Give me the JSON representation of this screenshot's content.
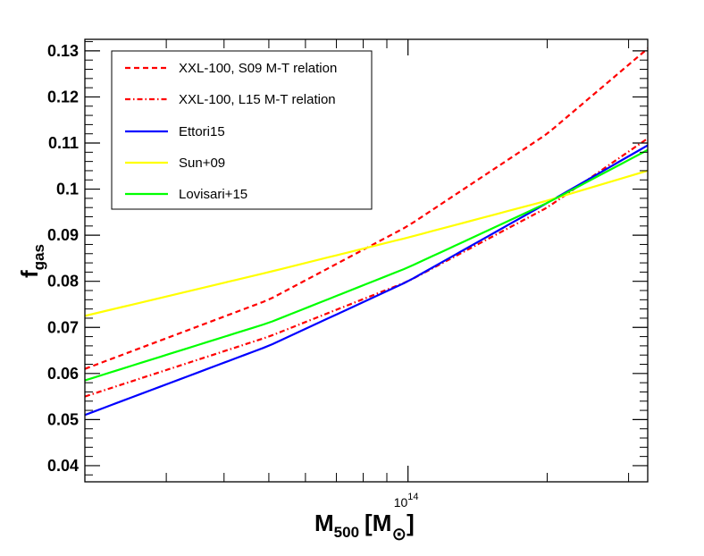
{
  "chart_data": {
    "type": "line",
    "title": "",
    "xlabel": {
      "main": "M",
      "sub": "500",
      "unit_open": "[M",
      "unit_sub": "⊙",
      "unit_close": "]"
    },
    "ylabel": {
      "main": "f",
      "sub": "gas"
    },
    "x_scale": "log",
    "xlim": [
      20000000000000,
      330000000000000
    ],
    "ylim": [
      0.0365,
      0.1325
    ],
    "x_tick_labels": [
      {
        "value": 100000000000000,
        "base": "10",
        "exp": "14"
      }
    ],
    "x_minor_ticks": [
      20000000000000,
      30000000000000,
      40000000000000,
      50000000000000,
      60000000000000,
      70000000000000,
      80000000000000,
      90000000000000,
      200000000000000,
      300000000000000
    ],
    "y_ticks": [
      0.04,
      0.05,
      0.06,
      0.07,
      0.08,
      0.09,
      0.1,
      0.11,
      0.12,
      0.13
    ],
    "y_tick_labels": [
      "0.04",
      "0.05",
      "0.06",
      "0.07",
      "0.08",
      "0.09",
      "0.1",
      "0.11",
      "0.12",
      "0.13"
    ],
    "legend_position": "top-left",
    "series": [
      {
        "name": "XXL-100, S09 M-T relation",
        "color": "#ff0000",
        "dash": "dashed",
        "x": [
          20000000000000,
          50000000000000,
          100000000000000,
          200000000000000,
          330000000000000
        ],
        "y": [
          0.061,
          0.076,
          0.092,
          0.112,
          0.1305
        ]
      },
      {
        "name": "XXL-100, L15 M-T relation",
        "color": "#ff0000",
        "dash": "dashdot",
        "x": [
          20000000000000,
          50000000000000,
          100000000000000,
          200000000000000,
          330000000000000
        ],
        "y": [
          0.055,
          0.068,
          0.08,
          0.096,
          0.111
        ]
      },
      {
        "name": "Ettori15",
        "color": "#0000ff",
        "dash": "solid",
        "x": [
          20000000000000,
          50000000000000,
          100000000000000,
          200000000000000,
          330000000000000
        ],
        "y": [
          0.051,
          0.066,
          0.08,
          0.097,
          0.1095
        ]
      },
      {
        "name": "Sun+09",
        "color": "#ffff00",
        "dash": "solid",
        "x": [
          20000000000000,
          50000000000000,
          100000000000000,
          200000000000000,
          330000000000000
        ],
        "y": [
          0.0725,
          0.082,
          0.0895,
          0.0975,
          0.104
        ]
      },
      {
        "name": "Lovisari+15",
        "color": "#00ff00",
        "dash": "solid",
        "x": [
          20000000000000,
          50000000000000,
          100000000000000,
          200000000000000,
          330000000000000
        ],
        "y": [
          0.0585,
          0.071,
          0.083,
          0.097,
          0.1085
        ]
      }
    ]
  }
}
